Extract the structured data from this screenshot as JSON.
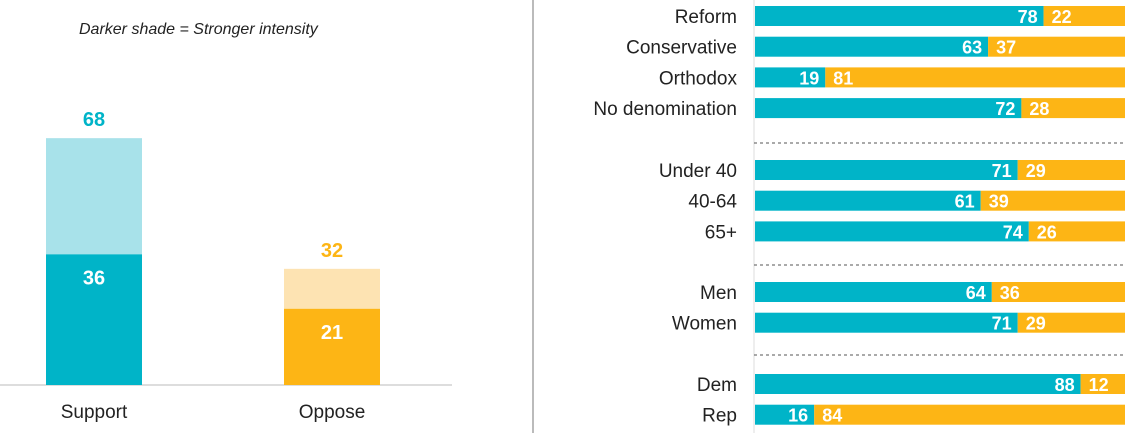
{
  "note": "Darker shade = Stronger intensity",
  "colors": {
    "support_strong": "#00B4C8",
    "support_light": "#A8E2EA",
    "oppose_strong": "#FDB515",
    "oppose_light": "#FDE3B2",
    "support_text": "#00B4C8",
    "oppose_text": "#FDB515"
  },
  "chart_data": [
    {
      "type": "bar",
      "stacked": true,
      "categories": [
        "Support",
        "Oppose"
      ],
      "totals": [
        68,
        32
      ],
      "series": [
        {
          "values": [
            36,
            21
          ]
        },
        {
          "values": [
            32,
            11
          ]
        }
      ],
      "ylim": [
        0,
        100
      ]
    },
    {
      "type": "bar",
      "orientation": "horizontal",
      "stacked": true,
      "groups": [
        {
          "rows": [
            {
              "label": "Reform",
              "support": 78,
              "oppose": 22
            },
            {
              "label": "Conservative",
              "support": 63,
              "oppose": 37
            },
            {
              "label": "Orthodox",
              "support": 19,
              "oppose": 81
            },
            {
              "label": "No denomination",
              "support": 72,
              "oppose": 28
            }
          ]
        },
        {
          "rows": [
            {
              "label": "Under 40",
              "support": 71,
              "oppose": 29
            },
            {
              "label": "40-64",
              "support": 61,
              "oppose": 39
            },
            {
              "label": "65+",
              "support": 74,
              "oppose": 26
            }
          ]
        },
        {
          "rows": [
            {
              "label": "Men",
              "support": 64,
              "oppose": 36
            },
            {
              "label": "Women",
              "support": 71,
              "oppose": 29
            }
          ]
        },
        {
          "rows": [
            {
              "label": "Dem",
              "support": 88,
              "oppose": 12
            },
            {
              "label": "Rep",
              "support": 16,
              "oppose": 84
            }
          ]
        }
      ],
      "xlim": [
        0,
        100
      ]
    }
  ]
}
